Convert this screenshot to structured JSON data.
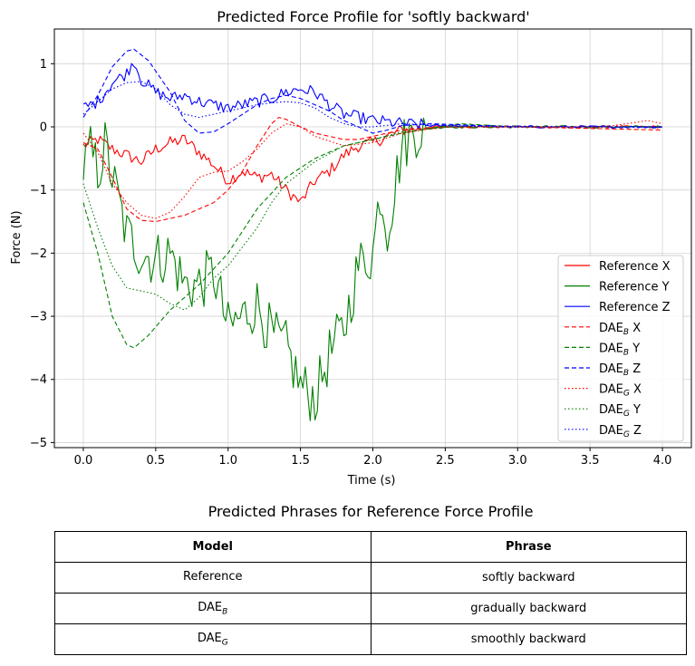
{
  "chart_data": {
    "type": "line",
    "title": "Predicted Force Profile for 'softly backward'",
    "xlabel": "Time (s)",
    "ylabel": "Force (N)",
    "xlim": [
      -0.2,
      4.2
    ],
    "ylim": [
      -5.08,
      1.55
    ],
    "xticks": [
      0,
      0.5,
      1,
      1.5,
      2,
      2.5,
      3,
      3.5,
      4
    ],
    "xtick_labels": [
      "0.0",
      "0.5",
      "1.0",
      "1.5",
      "2.0",
      "2.5",
      "3.0",
      "3.5",
      "4.0"
    ],
    "yticks": [
      1,
      0,
      -1,
      -2,
      -3,
      -4,
      -5
    ],
    "ytick_labels": [
      "1",
      "0",
      "−1",
      "−2",
      "−3",
      "−4",
      "−5"
    ],
    "grid": true,
    "legend_position": "lower-right",
    "series": [
      {
        "name": "Reference X",
        "label_main": "Reference X",
        "label_sub": "",
        "label_tail": "",
        "color": "#ff0000",
        "dash": "solid",
        "jitter": 0.1,
        "points": [
          [
            0,
            -0.3
          ],
          [
            0.1,
            -0.2
          ],
          [
            0.2,
            -0.35
          ],
          [
            0.3,
            -0.45
          ],
          [
            0.4,
            -0.55
          ],
          [
            0.5,
            -0.35
          ],
          [
            0.6,
            -0.25
          ],
          [
            0.7,
            -0.2
          ],
          [
            0.8,
            -0.4
          ],
          [
            0.9,
            -0.6
          ],
          [
            1.0,
            -0.85
          ],
          [
            1.1,
            -0.7
          ],
          [
            1.2,
            -0.8
          ],
          [
            1.3,
            -0.75
          ],
          [
            1.4,
            -1.0
          ],
          [
            1.5,
            -1.2
          ],
          [
            1.6,
            -0.85
          ],
          [
            1.7,
            -0.7
          ],
          [
            1.8,
            -0.45
          ],
          [
            1.9,
            -0.3
          ],
          [
            2.0,
            -0.25
          ],
          [
            2.1,
            -0.15
          ],
          [
            2.2,
            -0.05
          ],
          [
            2.4,
            0.0
          ],
          [
            3.0,
            0.0
          ],
          [
            4.0,
            0.0
          ]
        ]
      },
      {
        "name": "Reference Y",
        "label_main": "Reference Y",
        "label_sub": "",
        "label_tail": "",
        "color": "#008000",
        "dash": "solid",
        "jitter": 0.45,
        "points": [
          [
            0,
            -0.65
          ],
          [
            0.05,
            -0.4
          ],
          [
            0.1,
            -0.7
          ],
          [
            0.15,
            -0.3
          ],
          [
            0.2,
            -0.8
          ],
          [
            0.3,
            -1.7
          ],
          [
            0.4,
            -2.0
          ],
          [
            0.5,
            -2.1
          ],
          [
            0.6,
            -2.0
          ],
          [
            0.7,
            -2.5
          ],
          [
            0.8,
            -2.5
          ],
          [
            0.9,
            -2.3
          ],
          [
            1.0,
            -3.2
          ],
          [
            1.1,
            -3.0
          ],
          [
            1.2,
            -2.8
          ],
          [
            1.3,
            -3.3
          ],
          [
            1.4,
            -3.5
          ],
          [
            1.5,
            -4.1
          ],
          [
            1.6,
            -4.3
          ],
          [
            1.7,
            -3.6
          ],
          [
            1.8,
            -3.2
          ],
          [
            1.9,
            -2.2
          ],
          [
            2.0,
            -2.0
          ],
          [
            2.05,
            -1.0
          ],
          [
            2.1,
            -1.6
          ],
          [
            2.15,
            -1.0
          ],
          [
            2.2,
            -0.3
          ],
          [
            2.3,
            -0.05
          ],
          [
            2.5,
            0.0
          ],
          [
            3.0,
            0.0
          ],
          [
            4.0,
            0.0
          ]
        ]
      },
      {
        "name": "Reference Z",
        "label_main": "Reference Z",
        "label_sub": "",
        "label_tail": "",
        "color": "#0000ff",
        "dash": "solid",
        "jitter": 0.1,
        "points": [
          [
            0,
            0.3
          ],
          [
            0.1,
            0.4
          ],
          [
            0.2,
            0.7
          ],
          [
            0.3,
            0.85
          ],
          [
            0.35,
            1.05
          ],
          [
            0.4,
            0.75
          ],
          [
            0.5,
            0.55
          ],
          [
            0.6,
            0.45
          ],
          [
            0.7,
            0.5
          ],
          [
            0.8,
            0.4
          ],
          [
            0.9,
            0.35
          ],
          [
            1.0,
            0.3
          ],
          [
            1.1,
            0.35
          ],
          [
            1.2,
            0.4
          ],
          [
            1.3,
            0.45
          ],
          [
            1.4,
            0.55
          ],
          [
            1.5,
            0.6
          ],
          [
            1.6,
            0.55
          ],
          [
            1.7,
            0.35
          ],
          [
            1.8,
            0.2
          ],
          [
            1.9,
            0.15
          ],
          [
            2.0,
            0.1
          ],
          [
            2.2,
            0.05
          ],
          [
            2.4,
            0.02
          ],
          [
            3.0,
            0.0
          ],
          [
            4.0,
            0.0
          ]
        ]
      },
      {
        "name": "DAEB X",
        "label_main": "DAE",
        "label_sub": "B",
        "label_tail": " X",
        "color": "#ff0000",
        "dash": "dashed",
        "jitter": 0.0,
        "points": [
          [
            0,
            -0.25
          ],
          [
            0.1,
            -0.35
          ],
          [
            0.2,
            -0.8
          ],
          [
            0.3,
            -1.3
          ],
          [
            0.4,
            -1.48
          ],
          [
            0.5,
            -1.5
          ],
          [
            0.6,
            -1.45
          ],
          [
            0.7,
            -1.4
          ],
          [
            0.8,
            -1.3
          ],
          [
            0.9,
            -1.2
          ],
          [
            1.0,
            -1.0
          ],
          [
            1.1,
            -0.7
          ],
          [
            1.2,
            -0.3
          ],
          [
            1.3,
            0.05
          ],
          [
            1.35,
            0.15
          ],
          [
            1.4,
            0.12
          ],
          [
            1.5,
            0.0
          ],
          [
            1.6,
            -0.1
          ],
          [
            1.7,
            -0.15
          ],
          [
            1.8,
            -0.2
          ],
          [
            1.9,
            -0.2
          ],
          [
            2.0,
            -0.15
          ],
          [
            2.2,
            -0.05
          ],
          [
            2.5,
            0.0
          ],
          [
            3.0,
            0.0
          ],
          [
            4.0,
            -0.05
          ]
        ]
      },
      {
        "name": "DAEB Y",
        "label_main": "DAE",
        "label_sub": "B",
        "label_tail": " Y",
        "color": "#008000",
        "dash": "dashed",
        "jitter": 0.0,
        "points": [
          [
            0,
            -1.2
          ],
          [
            0.1,
            -2.0
          ],
          [
            0.2,
            -3.0
          ],
          [
            0.3,
            -3.45
          ],
          [
            0.35,
            -3.5
          ],
          [
            0.45,
            -3.3
          ],
          [
            0.6,
            -2.9
          ],
          [
            0.8,
            -2.5
          ],
          [
            1.0,
            -2.0
          ],
          [
            1.2,
            -1.3
          ],
          [
            1.4,
            -0.8
          ],
          [
            1.6,
            -0.5
          ],
          [
            1.8,
            -0.3
          ],
          [
            2.0,
            -0.2
          ],
          [
            2.2,
            -0.1
          ],
          [
            2.4,
            -0.02
          ],
          [
            2.6,
            0.05
          ],
          [
            3.0,
            0.0
          ],
          [
            4.0,
            0.0
          ]
        ]
      },
      {
        "name": "DAEB Z",
        "label_main": "DAE",
        "label_sub": "B",
        "label_tail": " Z",
        "color": "#0000ff",
        "dash": "dashed",
        "jitter": 0.0,
        "points": [
          [
            0,
            0.15
          ],
          [
            0.1,
            0.5
          ],
          [
            0.2,
            0.95
          ],
          [
            0.3,
            1.2
          ],
          [
            0.35,
            1.23
          ],
          [
            0.45,
            1.05
          ],
          [
            0.6,
            0.55
          ],
          [
            0.7,
            0.1
          ],
          [
            0.8,
            -0.1
          ],
          [
            0.9,
            -0.08
          ],
          [
            1.0,
            0.05
          ],
          [
            1.1,
            0.2
          ],
          [
            1.2,
            0.35
          ],
          [
            1.3,
            0.45
          ],
          [
            1.4,
            0.5
          ],
          [
            1.5,
            0.45
          ],
          [
            1.6,
            0.35
          ],
          [
            1.7,
            0.25
          ],
          [
            1.8,
            0.1
          ],
          [
            1.9,
            0.0
          ],
          [
            2.0,
            -0.1
          ],
          [
            2.1,
            -0.05
          ],
          [
            2.2,
            0.02
          ],
          [
            2.4,
            0.05
          ],
          [
            3.0,
            0.0
          ],
          [
            4.0,
            0.0
          ]
        ]
      },
      {
        "name": "DAEG X",
        "label_main": "DAE",
        "label_sub": "G",
        "label_tail": " X",
        "color": "#ff0000",
        "dash": "dotted",
        "jitter": 0.0,
        "points": [
          [
            0,
            -0.1
          ],
          [
            0.1,
            -0.4
          ],
          [
            0.2,
            -0.9
          ],
          [
            0.3,
            -1.2
          ],
          [
            0.4,
            -1.4
          ],
          [
            0.5,
            -1.45
          ],
          [
            0.6,
            -1.35
          ],
          [
            0.7,
            -1.1
          ],
          [
            0.8,
            -0.8
          ],
          [
            0.9,
            -0.72
          ],
          [
            1.0,
            -0.7
          ],
          [
            1.1,
            -0.55
          ],
          [
            1.2,
            -0.35
          ],
          [
            1.3,
            -0.1
          ],
          [
            1.4,
            0.05
          ],
          [
            1.5,
            0.0
          ],
          [
            1.6,
            -0.15
          ],
          [
            1.8,
            -0.3
          ],
          [
            2.0,
            -0.25
          ],
          [
            2.2,
            -0.1
          ],
          [
            2.5,
            0.0
          ],
          [
            3.0,
            0.0
          ],
          [
            3.6,
            0.0
          ],
          [
            3.9,
            0.1
          ],
          [
            4.0,
            0.05
          ]
        ]
      },
      {
        "name": "DAEG Y",
        "label_main": "DAE",
        "label_sub": "G",
        "label_tail": " Y",
        "color": "#008000",
        "dash": "dotted",
        "jitter": 0.0,
        "points": [
          [
            0,
            -0.9
          ],
          [
            0.1,
            -1.6
          ],
          [
            0.2,
            -2.2
          ],
          [
            0.3,
            -2.55
          ],
          [
            0.4,
            -2.6
          ],
          [
            0.5,
            -2.65
          ],
          [
            0.6,
            -2.8
          ],
          [
            0.7,
            -2.9
          ],
          [
            0.8,
            -2.7
          ],
          [
            0.9,
            -2.4
          ],
          [
            1.0,
            -2.2
          ],
          [
            1.1,
            -1.9
          ],
          [
            1.2,
            -1.6
          ],
          [
            1.3,
            -1.2
          ],
          [
            1.4,
            -0.9
          ],
          [
            1.6,
            -0.55
          ],
          [
            1.8,
            -0.3
          ],
          [
            2.0,
            -0.2
          ],
          [
            2.2,
            -0.08
          ],
          [
            2.5,
            0.0
          ],
          [
            3.0,
            0.0
          ],
          [
            4.0,
            0.0
          ]
        ]
      },
      {
        "name": "DAEG Z",
        "label_main": "DAE",
        "label_sub": "G",
        "label_tail": " Z",
        "color": "#0000ff",
        "dash": "dotted",
        "jitter": 0.0,
        "points": [
          [
            0,
            0.2
          ],
          [
            0.1,
            0.4
          ],
          [
            0.2,
            0.6
          ],
          [
            0.3,
            0.7
          ],
          [
            0.4,
            0.72
          ],
          [
            0.5,
            0.6
          ],
          [
            0.6,
            0.35
          ],
          [
            0.7,
            0.2
          ],
          [
            0.8,
            0.15
          ],
          [
            0.9,
            0.2
          ],
          [
            1.0,
            0.25
          ],
          [
            1.1,
            0.3
          ],
          [
            1.2,
            0.35
          ],
          [
            1.3,
            0.38
          ],
          [
            1.4,
            0.4
          ],
          [
            1.5,
            0.38
          ],
          [
            1.6,
            0.3
          ],
          [
            1.7,
            0.15
          ],
          [
            1.8,
            0.05
          ],
          [
            1.9,
            0.0
          ],
          [
            2.0,
            0.0
          ],
          [
            2.2,
            0.05
          ],
          [
            2.5,
            0.02
          ],
          [
            3.0,
            0.0
          ],
          [
            4.0,
            0.0
          ]
        ]
      }
    ]
  },
  "table": {
    "title": "Predicted Phrases for Reference Force Profile",
    "header": {
      "model": "Model",
      "phrase": "Phrase"
    },
    "rows": [
      {
        "model_main": "Reference",
        "model_sub": "",
        "phrase": "softly backward"
      },
      {
        "model_main": "DAE",
        "model_sub": "B",
        "phrase": "gradually backward"
      },
      {
        "model_main": "DAE",
        "model_sub": "G",
        "phrase": "smoothly  backward"
      }
    ]
  }
}
